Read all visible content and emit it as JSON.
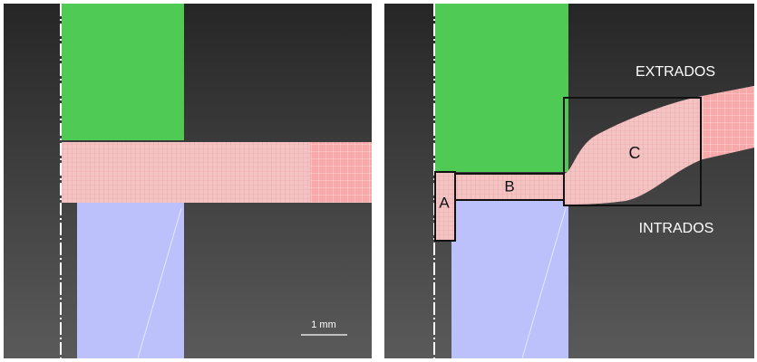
{
  "left_panel": {
    "scale_bar_label": "1 mm"
  },
  "right_panel": {
    "labels": {
      "extrados": "EXTRADOS",
      "intrados": "INTRADOS",
      "a": "A",
      "b": "B",
      "c": "C"
    }
  }
}
